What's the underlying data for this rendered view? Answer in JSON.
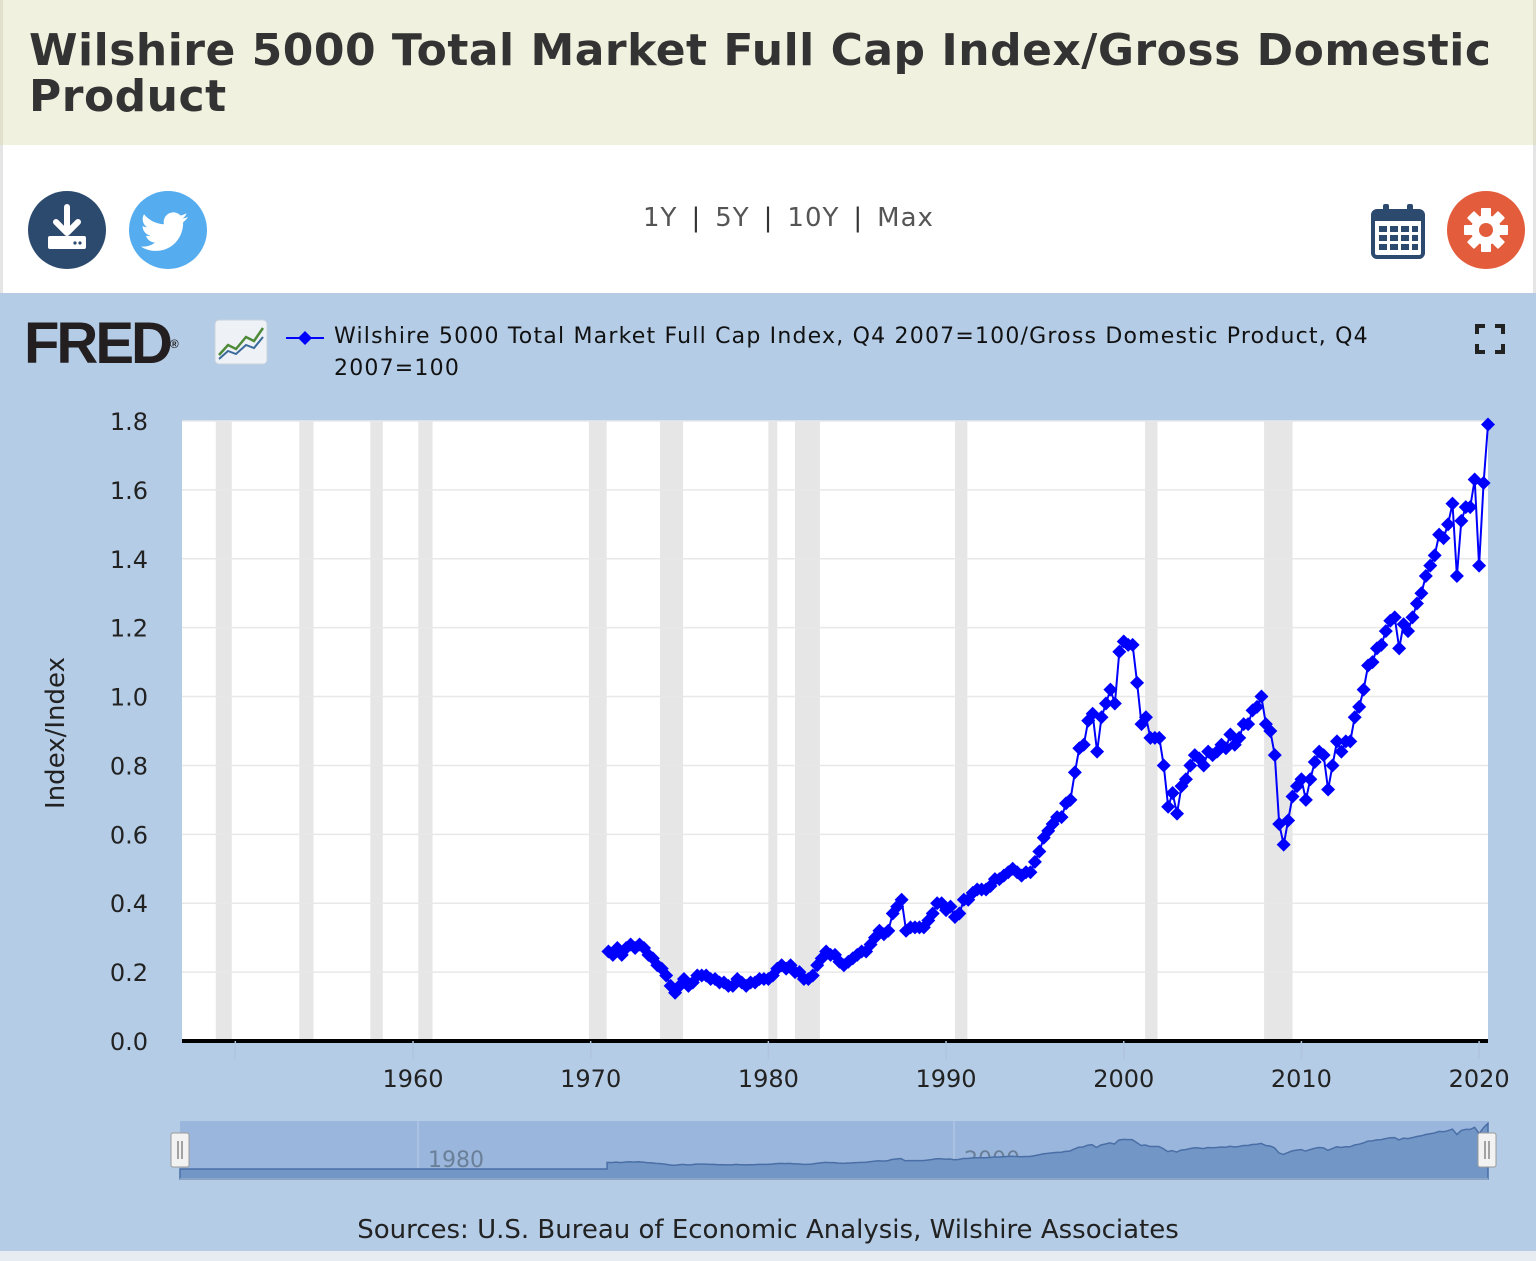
{
  "page": {
    "title": "Wilshire 5000 Total Market Full Cap Index/Gross Domestic Product"
  },
  "toolbar": {
    "download_icon": "download-icon",
    "twitter_icon": "twitter-icon",
    "calendar_icon": "calendar-icon",
    "settings_icon": "gear-icon",
    "range_options": [
      "1Y",
      "5Y",
      "10Y",
      "Max"
    ],
    "colors": {
      "download": "#2c4a6e",
      "twitter": "#55acee",
      "settings": "#e35c3c",
      "calendar": "#2c4a6e"
    }
  },
  "fred": {
    "logo_text": "FRED",
    "logo_mark": "®"
  },
  "chart_data": {
    "type": "line",
    "series_name": "Wilshire 5000 Total Market Full Cap Index, Q4 2007=100/Gross Domestic Product, Q4 2007=100",
    "ylabel": "Index/Index",
    "xlabel": "",
    "ylim": [
      0,
      1.8
    ],
    "xlim": [
      1947.0,
      2020.5
    ],
    "y_ticks": [
      "0.0",
      "0.2",
      "0.4",
      "0.6",
      "0.8",
      "1.0",
      "1.2",
      "1.4",
      "1.6",
      "1.8"
    ],
    "x_ticks": [
      "1960",
      "1970",
      "1980",
      "1990",
      "2000",
      "2010",
      "2020"
    ],
    "line_color": "#0000ff",
    "recession_band_color": "#e6e6e6",
    "recessions": [
      [
        1948.9,
        1949.8
      ],
      [
        1953.6,
        1954.4
      ],
      [
        1957.6,
        1958.3
      ],
      [
        1960.3,
        1961.1
      ],
      [
        1969.9,
        1970.9
      ],
      [
        1973.9,
        1975.2
      ],
      [
        1980.0,
        1980.5
      ],
      [
        1981.5,
        1982.9
      ],
      [
        1990.5,
        1991.2
      ],
      [
        2001.2,
        2001.9
      ],
      [
        2007.9,
        2009.5
      ]
    ],
    "points": [
      [
        1971.0,
        0.26
      ],
      [
        1971.25,
        0.25
      ],
      [
        1971.5,
        0.27
      ],
      [
        1971.75,
        0.25
      ],
      [
        1972.0,
        0.27
      ],
      [
        1972.25,
        0.28
      ],
      [
        1972.5,
        0.27
      ],
      [
        1972.75,
        0.28
      ],
      [
        1973.0,
        0.27
      ],
      [
        1973.25,
        0.25
      ],
      [
        1973.5,
        0.24
      ],
      [
        1973.75,
        0.22
      ],
      [
        1974.0,
        0.21
      ],
      [
        1974.25,
        0.19
      ],
      [
        1974.5,
        0.16
      ],
      [
        1974.75,
        0.14
      ],
      [
        1975.0,
        0.16
      ],
      [
        1975.25,
        0.18
      ],
      [
        1975.5,
        0.16
      ],
      [
        1975.75,
        0.17
      ],
      [
        1976.0,
        0.19
      ],
      [
        1976.25,
        0.19
      ],
      [
        1976.5,
        0.19
      ],
      [
        1976.75,
        0.18
      ],
      [
        1977.0,
        0.18
      ],
      [
        1977.25,
        0.17
      ],
      [
        1977.5,
        0.17
      ],
      [
        1977.75,
        0.16
      ],
      [
        1978.0,
        0.16
      ],
      [
        1978.25,
        0.18
      ],
      [
        1978.5,
        0.17
      ],
      [
        1978.75,
        0.16
      ],
      [
        1979.0,
        0.17
      ],
      [
        1979.25,
        0.17
      ],
      [
        1979.5,
        0.18
      ],
      [
        1979.75,
        0.18
      ],
      [
        1980.0,
        0.18
      ],
      [
        1980.25,
        0.19
      ],
      [
        1980.5,
        0.21
      ],
      [
        1980.75,
        0.22
      ],
      [
        1981.0,
        0.21
      ],
      [
        1981.25,
        0.22
      ],
      [
        1981.5,
        0.2
      ],
      [
        1981.75,
        0.2
      ],
      [
        1982.0,
        0.18
      ],
      [
        1982.25,
        0.18
      ],
      [
        1982.5,
        0.19
      ],
      [
        1982.75,
        0.22
      ],
      [
        1983.0,
        0.24
      ],
      [
        1983.25,
        0.26
      ],
      [
        1983.5,
        0.25
      ],
      [
        1983.75,
        0.25
      ],
      [
        1984.0,
        0.23
      ],
      [
        1984.25,
        0.22
      ],
      [
        1984.5,
        0.23
      ],
      [
        1984.75,
        0.24
      ],
      [
        1985.0,
        0.25
      ],
      [
        1985.25,
        0.26
      ],
      [
        1985.5,
        0.26
      ],
      [
        1985.75,
        0.28
      ],
      [
        1986.0,
        0.3
      ],
      [
        1986.25,
        0.32
      ],
      [
        1986.5,
        0.31
      ],
      [
        1986.75,
        0.32
      ],
      [
        1987.0,
        0.37
      ],
      [
        1987.25,
        0.39
      ],
      [
        1987.5,
        0.41
      ],
      [
        1987.75,
        0.32
      ],
      [
        1988.0,
        0.33
      ],
      [
        1988.25,
        0.33
      ],
      [
        1988.5,
        0.33
      ],
      [
        1988.75,
        0.33
      ],
      [
        1989.0,
        0.35
      ],
      [
        1989.25,
        0.37
      ],
      [
        1989.5,
        0.4
      ],
      [
        1989.75,
        0.4
      ],
      [
        1990.0,
        0.38
      ],
      [
        1990.25,
        0.39
      ],
      [
        1990.5,
        0.36
      ],
      [
        1990.75,
        0.37
      ],
      [
        1991.0,
        0.41
      ],
      [
        1991.25,
        0.41
      ],
      [
        1991.5,
        0.43
      ],
      [
        1991.75,
        0.44
      ],
      [
        1992.0,
        0.44
      ],
      [
        1992.25,
        0.44
      ],
      [
        1992.5,
        0.45
      ],
      [
        1992.75,
        0.47
      ],
      [
        1993.0,
        0.47
      ],
      [
        1993.25,
        0.48
      ],
      [
        1993.5,
        0.49
      ],
      [
        1993.75,
        0.5
      ],
      [
        1994.0,
        0.49
      ],
      [
        1994.25,
        0.48
      ],
      [
        1994.5,
        0.49
      ],
      [
        1994.75,
        0.49
      ],
      [
        1995.0,
        0.52
      ],
      [
        1995.25,
        0.55
      ],
      [
        1995.5,
        0.59
      ],
      [
        1995.75,
        0.61
      ],
      [
        1996.0,
        0.63
      ],
      [
        1996.25,
        0.65
      ],
      [
        1996.5,
        0.65
      ],
      [
        1996.75,
        0.69
      ],
      [
        1997.0,
        0.7
      ],
      [
        1997.25,
        0.78
      ],
      [
        1997.5,
        0.85
      ],
      [
        1997.75,
        0.86
      ],
      [
        1998.0,
        0.93
      ],
      [
        1998.25,
        0.95
      ],
      [
        1998.5,
        0.84
      ],
      [
        1998.75,
        0.94
      ],
      [
        1999.0,
        0.98
      ],
      [
        1999.25,
        1.02
      ],
      [
        1999.5,
        0.98
      ],
      [
        1999.75,
        1.13
      ],
      [
        2000.0,
        1.16
      ],
      [
        2000.25,
        1.15
      ],
      [
        2000.5,
        1.15
      ],
      [
        2000.75,
        1.04
      ],
      [
        2001.0,
        0.92
      ],
      [
        2001.25,
        0.94
      ],
      [
        2001.5,
        0.88
      ],
      [
        2001.75,
        0.88
      ],
      [
        2002.0,
        0.88
      ],
      [
        2002.25,
        0.8
      ],
      [
        2002.5,
        0.68
      ],
      [
        2002.75,
        0.72
      ],
      [
        2003.0,
        0.66
      ],
      [
        2003.25,
        0.74
      ],
      [
        2003.5,
        0.76
      ],
      [
        2003.75,
        0.8
      ],
      [
        2004.0,
        0.83
      ],
      [
        2004.25,
        0.82
      ],
      [
        2004.5,
        0.8
      ],
      [
        2004.75,
        0.84
      ],
      [
        2005.0,
        0.83
      ],
      [
        2005.25,
        0.84
      ],
      [
        2005.5,
        0.86
      ],
      [
        2005.75,
        0.85
      ],
      [
        2006.0,
        0.89
      ],
      [
        2006.25,
        0.86
      ],
      [
        2006.5,
        0.88
      ],
      [
        2006.75,
        0.92
      ],
      [
        2007.0,
        0.92
      ],
      [
        2007.25,
        0.96
      ],
      [
        2007.5,
        0.97
      ],
      [
        2007.75,
        1.0
      ],
      [
        2008.0,
        0.92
      ],
      [
        2008.25,
        0.9
      ],
      [
        2008.5,
        0.83
      ],
      [
        2008.75,
        0.63
      ],
      [
        2009.0,
        0.57
      ],
      [
        2009.25,
        0.64
      ],
      [
        2009.5,
        0.71
      ],
      [
        2009.75,
        0.74
      ],
      [
        2010.0,
        0.76
      ],
      [
        2010.25,
        0.7
      ],
      [
        2010.5,
        0.76
      ],
      [
        2010.75,
        0.81
      ],
      [
        2011.0,
        0.84
      ],
      [
        2011.25,
        0.83
      ],
      [
        2011.5,
        0.73
      ],
      [
        2011.75,
        0.8
      ],
      [
        2012.0,
        0.87
      ],
      [
        2012.25,
        0.84
      ],
      [
        2012.5,
        0.87
      ],
      [
        2012.75,
        0.87
      ],
      [
        2013.0,
        0.94
      ],
      [
        2013.25,
        0.97
      ],
      [
        2013.5,
        1.02
      ],
      [
        2013.75,
        1.09
      ],
      [
        2014.0,
        1.1
      ],
      [
        2014.25,
        1.14
      ],
      [
        2014.5,
        1.15
      ],
      [
        2014.75,
        1.19
      ],
      [
        2015.0,
        1.22
      ],
      [
        2015.25,
        1.23
      ],
      [
        2015.5,
        1.14
      ],
      [
        2015.75,
        1.21
      ],
      [
        2016.0,
        1.19
      ],
      [
        2016.25,
        1.23
      ],
      [
        2016.5,
        1.27
      ],
      [
        2016.75,
        1.3
      ],
      [
        2017.0,
        1.35
      ],
      [
        2017.25,
        1.38
      ],
      [
        2017.5,
        1.41
      ],
      [
        2017.75,
        1.47
      ],
      [
        2018.0,
        1.46
      ],
      [
        2018.25,
        1.5
      ],
      [
        2018.5,
        1.56
      ],
      [
        2018.75,
        1.35
      ],
      [
        2019.0,
        1.51
      ],
      [
        2019.25,
        1.55
      ],
      [
        2019.5,
        1.55
      ],
      [
        2019.75,
        1.63
      ],
      [
        2020.0,
        1.38
      ],
      [
        2020.25,
        1.62
      ],
      [
        2020.5,
        1.79
      ]
    ]
  },
  "navigator": {
    "tick_labels": [
      "1980",
      "2000"
    ]
  },
  "footer": {
    "sources": "Sources: U.S. Bureau of Economic Analysis, Wilshire Associates"
  }
}
